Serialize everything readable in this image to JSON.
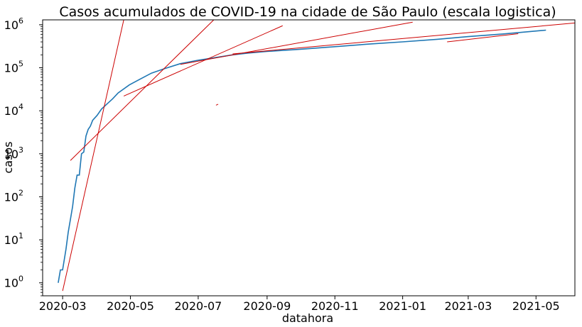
{
  "chart_data": {
    "type": "line",
    "title": "Casos acumulados de COVID-19 na cidade de São Paulo (escala logistica)",
    "xlabel": "datahora",
    "ylabel": "casos",
    "yscale": "log",
    "grid": false,
    "xlim": [
      "2020-02-12",
      "2021-06-05"
    ],
    "ylim": [
      0.5,
      1300000
    ],
    "x_ticks": [
      "2020-03",
      "2020-05",
      "2020-07",
      "2020-09",
      "2020-11",
      "2021-01",
      "2021-03",
      "2021-05"
    ],
    "y_ticks": [
      {
        "value": 1,
        "label": "10^0"
      },
      {
        "value": 10,
        "label": "10^1"
      },
      {
        "value": 100,
        "label": "10^2"
      },
      {
        "value": 1000,
        "label": "10^3"
      },
      {
        "value": 10000,
        "label": "10^4"
      },
      {
        "value": 100000,
        "label": "10^5"
      },
      {
        "value": 1000000,
        "label": "10^6"
      }
    ],
    "colors": {
      "series": "#1f77b4",
      "fits": "#cc0000"
    },
    "series": [
      {
        "x": [
          "2020-02-26",
          "2020-02-28",
          "2020-03-01",
          "2020-03-04",
          "2020-03-06",
          "2020-03-08",
          "2020-03-10",
          "2020-03-12",
          "2020-03-14",
          "2020-03-16",
          "2020-03-18",
          "2020-03-20",
          "2020-03-22",
          "2020-03-24",
          "2020-03-26",
          "2020-03-28",
          "2020-04-01",
          "2020-04-05",
          "2020-04-10",
          "2020-04-15",
          "2020-04-20",
          "2020-04-30",
          "2020-05-10",
          "2020-05-20",
          "2020-06-01",
          "2020-06-15",
          "2020-07-01",
          "2020-07-15",
          "2020-08-01",
          "2020-08-15",
          "2020-09-01",
          "2020-10-01",
          "2020-11-01",
          "2020-12-01",
          "2021-01-01",
          "2021-02-01",
          "2021-03-01",
          "2021-04-01",
          "2021-05-10"
        ],
        "y": [
          1,
          2,
          2,
          6,
          15,
          30,
          60,
          160,
          320,
          320,
          1000,
          1100,
          2600,
          3700,
          4400,
          6000,
          7800,
          11000,
          14500,
          19000,
          26000,
          40000,
          55000,
          75000,
          96000,
          125000,
          150000,
          170000,
          200000,
          220000,
          240000,
          270000,
          310000,
          355000,
          400000,
          460000,
          530000,
          610000,
          750000
        ]
      }
    ],
    "fit_lines": [
      {
        "x": [
          "2020-03-01",
          "2020-04-25"
        ],
        "y": [
          0.65,
          1300000
        ]
      },
      {
        "x": [
          "2020-03-08",
          "2020-07-15"
        ],
        "y": [
          700,
          1300000
        ]
      },
      {
        "x": [
          "2020-04-25",
          "2020-09-15"
        ],
        "y": [
          22000,
          950000
        ]
      },
      {
        "x": [
          "2020-06-15",
          "2021-01-10"
        ],
        "y": [
          120000,
          1150000
        ]
      },
      {
        "x": [
          "2020-08-01",
          "2021-06-05"
        ],
        "y": [
          210000,
          1100000
        ]
      },
      {
        "x": [
          "2021-02-10",
          "2021-04-15"
        ],
        "y": [
          400000,
          620000
        ]
      },
      {
        "x": [
          "2020-07-17",
          "2020-07-19"
        ],
        "y": [
          13500,
          14200
        ]
      }
    ]
  }
}
